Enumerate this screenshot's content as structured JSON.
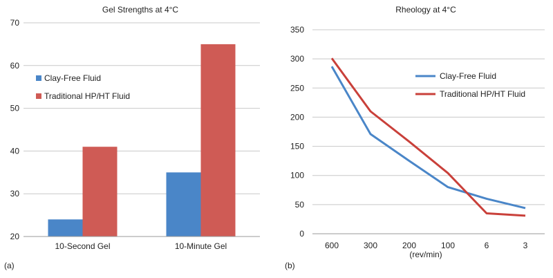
{
  "chart_data": [
    {
      "type": "bar",
      "panel_label": "(a)",
      "title": "Gel Strengths at 4°C",
      "xlabel": "",
      "ylabel": "",
      "categories": [
        "10-Second Gel",
        "10-Minute Gel"
      ],
      "ylim": [
        20,
        70
      ],
      "yticks": [
        20,
        30,
        40,
        50,
        60,
        70
      ],
      "grid": true,
      "legend_position": "left",
      "series": [
        {
          "name": "Clay-Free Fluid",
          "color": "#4a86c8",
          "values": [
            24,
            35
          ]
        },
        {
          "name": "Traditional HP/HT Fluid",
          "color": "#cf5b55",
          "values": [
            41,
            65
          ]
        }
      ]
    },
    {
      "type": "line",
      "panel_label": "(b)",
      "title": "Rheology at 4°C",
      "xlabel": "(rev/min)",
      "ylabel": "",
      "categories": [
        "600",
        "300",
        "200",
        "100",
        "6",
        "3"
      ],
      "ylim": [
        0,
        350
      ],
      "yticks": [
        0,
        50,
        100,
        150,
        200,
        250,
        300,
        350
      ],
      "grid": true,
      "legend_position": "top-right",
      "series": [
        {
          "name": "Clay-Free Fluid",
          "color": "#4a86c8",
          "values": [
            287,
            171,
            125,
            80,
            60,
            44
          ]
        },
        {
          "name": "Traditional HP/HT Fluid",
          "color": "#c9403a",
          "values": [
            301,
            210,
            158,
            104,
            35,
            31
          ]
        }
      ]
    }
  ]
}
